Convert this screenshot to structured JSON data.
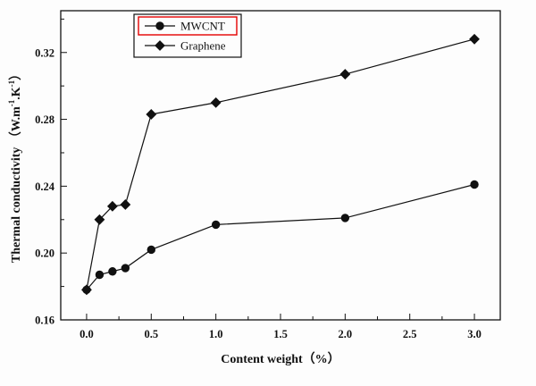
{
  "chart_data": {
    "type": "line",
    "title": "",
    "xlabel": "Content weight（%）",
    "ylabel_parts": [
      {
        "t": "Thermal conductivity （W.m"
      },
      {
        "t": "-1",
        "sup": true
      },
      {
        "t": ".K"
      },
      {
        "t": "-1",
        "sup": true
      },
      {
        "t": "）"
      }
    ],
    "x": [
      0.0,
      0.1,
      0.2,
      0.3,
      0.5,
      1.0,
      2.0,
      3.0
    ],
    "series": [
      {
        "name": "MWCNT",
        "marker": "circle",
        "color": "#111111",
        "values": [
          0.178,
          0.187,
          0.189,
          0.191,
          0.202,
          0.217,
          0.221,
          0.241
        ]
      },
      {
        "name": "Graphene",
        "marker": "diamond",
        "color": "#111111",
        "values": [
          0.178,
          0.22,
          0.228,
          0.229,
          0.283,
          0.29,
          0.307,
          0.328
        ]
      }
    ],
    "xlim": [
      -0.2,
      3.2
    ],
    "ylim": [
      0.16,
      0.345
    ],
    "xticks": [
      0.0,
      0.5,
      1.0,
      1.5,
      2.0,
      2.5,
      3.0
    ],
    "xtick_labels": [
      "0.0",
      "0.5",
      "1.0",
      "1.5",
      "2.0",
      "2.5",
      "3.0"
    ],
    "xticks_minor": [
      0.25,
      0.75,
      1.25,
      1.75,
      2.25,
      2.75
    ],
    "yticks": [
      0.16,
      0.2,
      0.24,
      0.28,
      0.32
    ],
    "ytick_labels": [
      "0.16",
      "0.20",
      "0.24",
      "0.28",
      "0.32"
    ],
    "yticks_minor": [
      0.18,
      0.22,
      0.26,
      0.3,
      0.34
    ],
    "grid": false,
    "legend": {
      "position": "top-inside-left",
      "entries": [
        "MWCNT",
        "Graphene"
      ],
      "highlighted_entry": "MWCNT",
      "highlight_color": "#e40000",
      "border_color": "#111111",
      "background": "#fdfdfd"
    },
    "frame_color": "#111111",
    "background": "#fdfdfd"
  }
}
